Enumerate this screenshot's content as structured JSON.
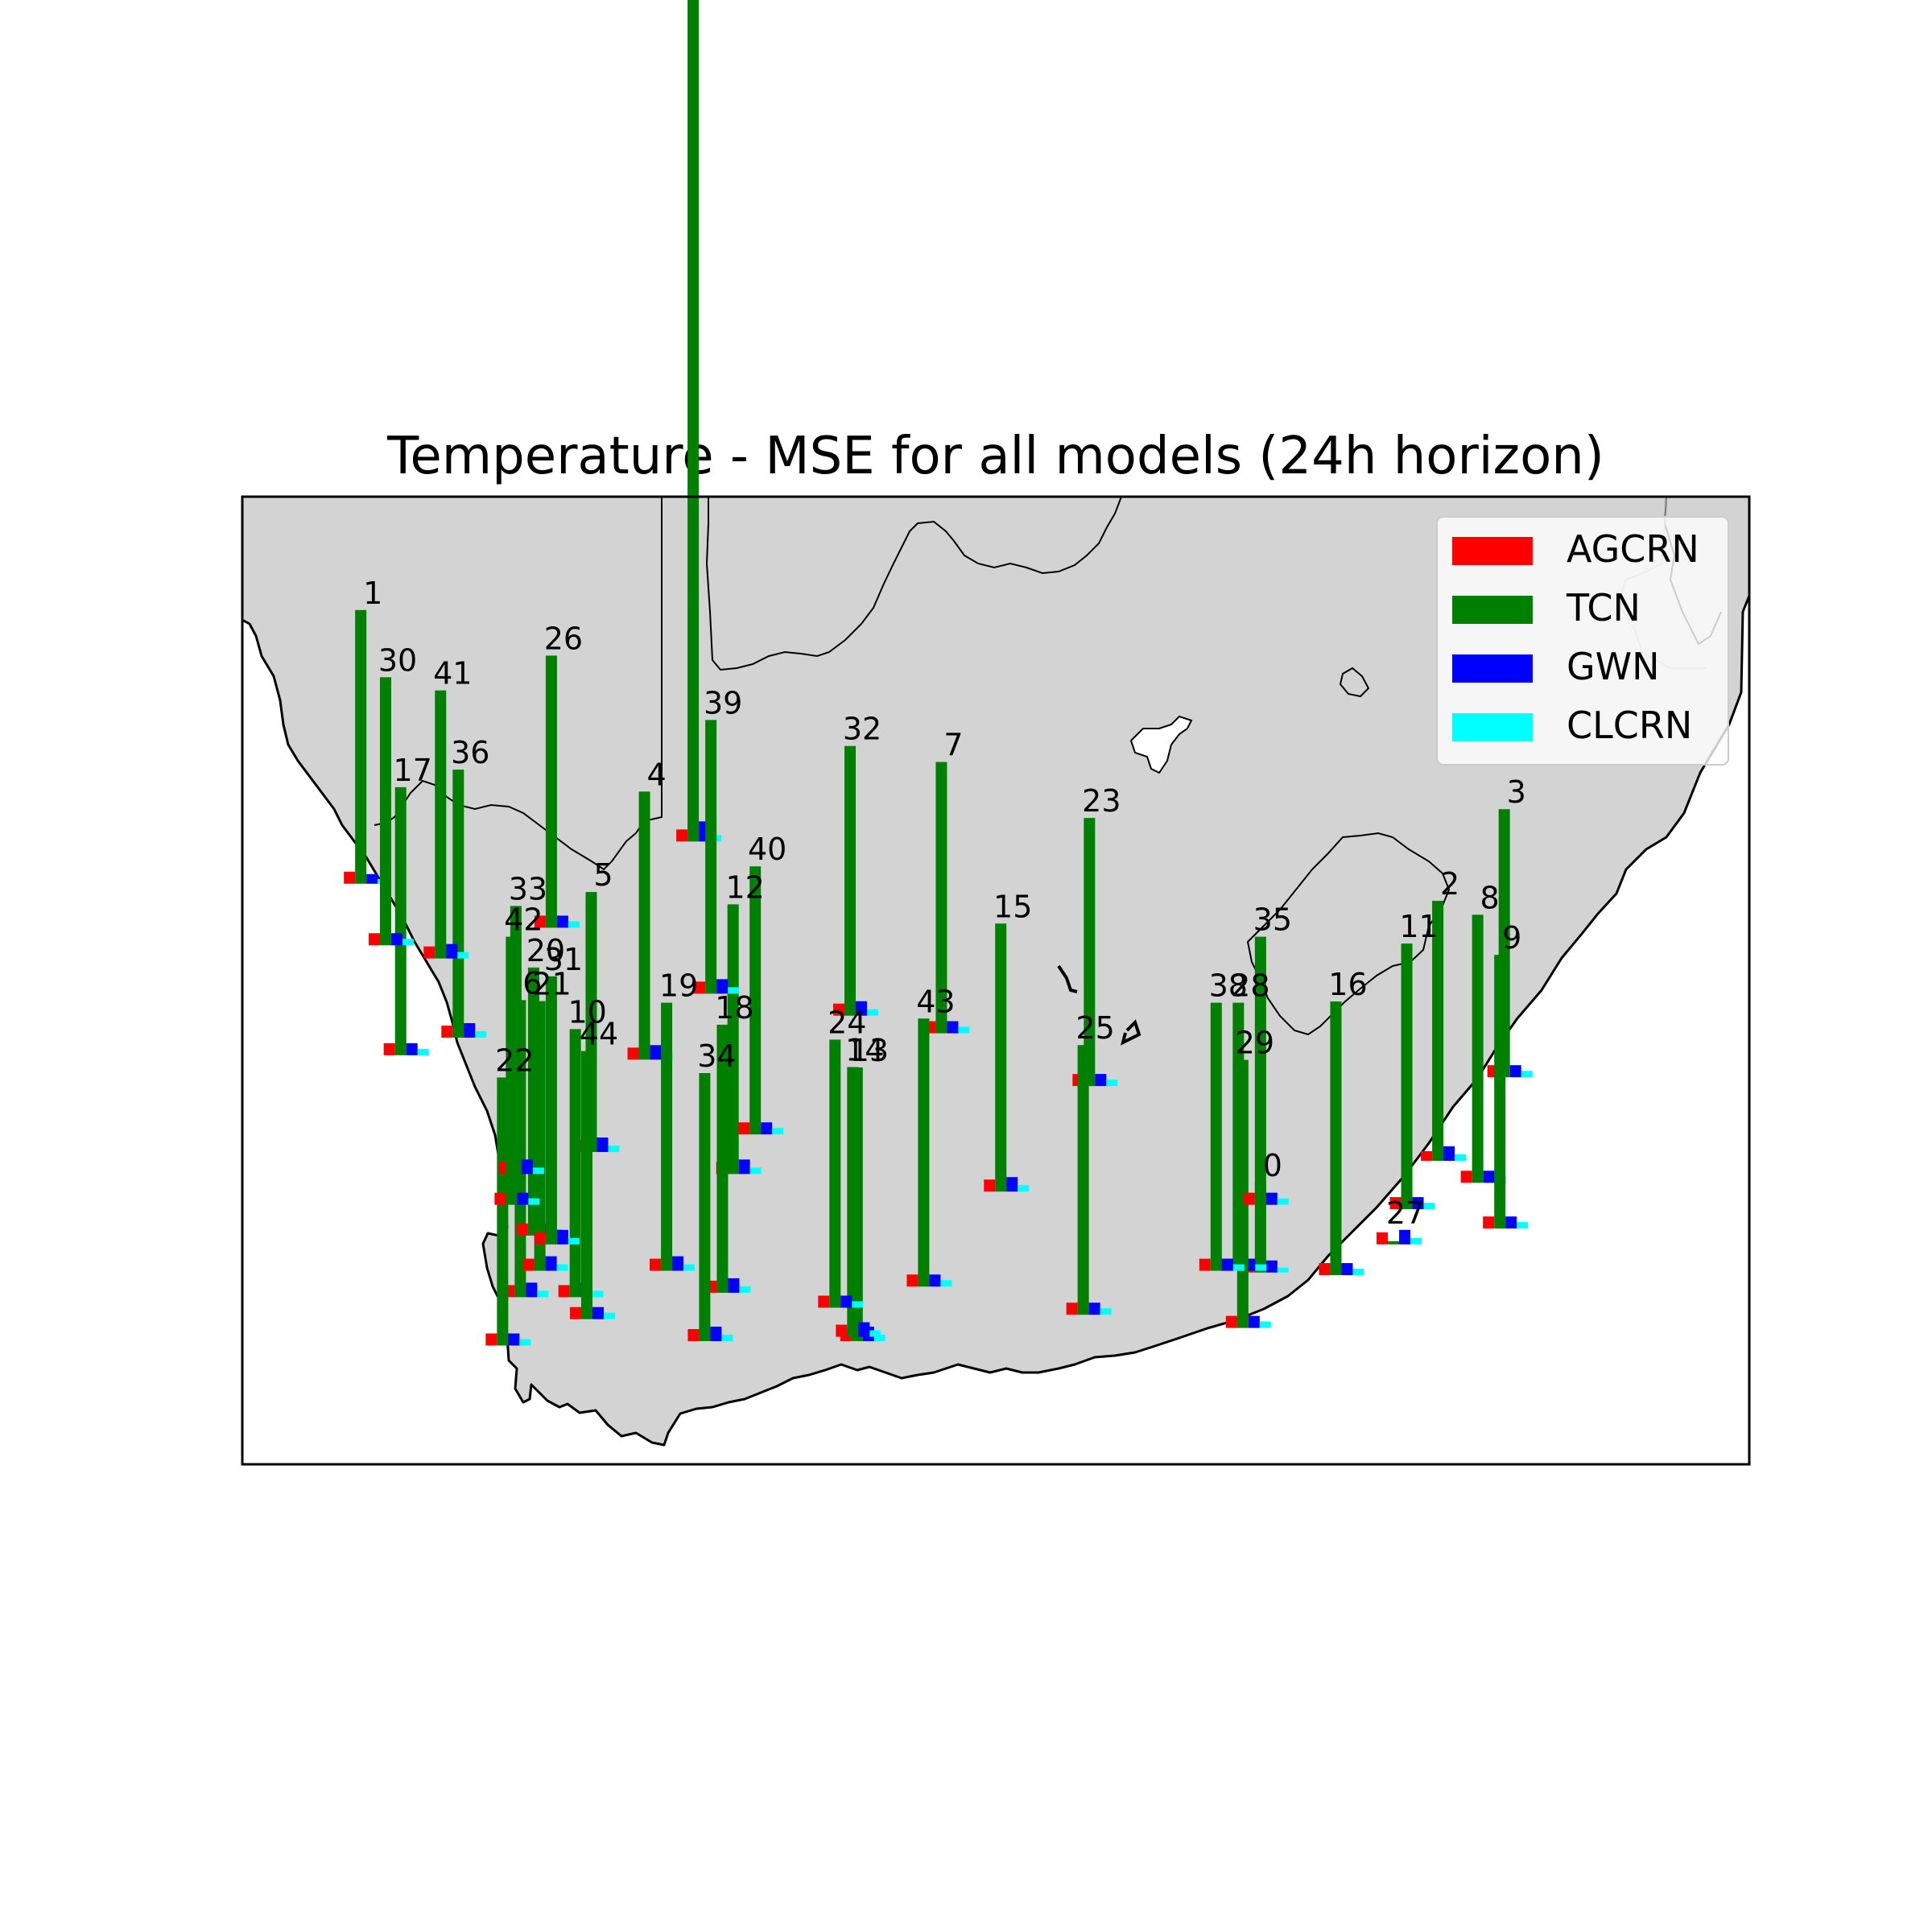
{
  "chart_data": {
    "type": "bar",
    "title": "Temperature - MSE for all models (24h horizon)",
    "xlabel": "",
    "ylabel": "",
    "grid": false,
    "legend_position": "top-right",
    "legend": [
      {
        "name": "AGCRN",
        "color": "#ff0000"
      },
      {
        "name": "TCN",
        "color": "#008000"
      },
      {
        "name": "GWN",
        "color": "#0000ff"
      },
      {
        "name": "CLCRN",
        "color": "#00ffff"
      }
    ],
    "map_extent": {
      "lon": [
        16,
        33
      ],
      "lat": [
        -35.5,
        -24.5
      ]
    },
    "stations": [
      {
        "id": "0",
        "lon": 27.55,
        "lat": -33.32,
        "AGCRN": 1.5,
        "TCN": 11.2,
        "GWN": 1.5,
        "CLCRN": 0.6
      },
      {
        "id": "1",
        "lon": 17.4,
        "lat": -28.9,
        "AGCRN": 1.5,
        "TCN": 34.0,
        "GWN": 1.2,
        "CLCRN": 0.6
      },
      {
        "id": "2",
        "lon": 29.55,
        "lat": -32.05,
        "AGCRN": 1.2,
        "TCN": 32.3,
        "GWN": 1.8,
        "CLCRN": 0.8
      },
      {
        "id": "3",
        "lon": 30.3,
        "lat": -31.1,
        "AGCRN": 1.5,
        "TCN": 33.3,
        "GWN": 1.5,
        "CLCRN": 0.8
      },
      {
        "id": "4",
        "lon": 20.6,
        "lat": -30.9,
        "AGCRN": 1.5,
        "TCN": 33.3,
        "GWN": 1.8,
        "CLCRN": 0.8
      },
      {
        "id": "5",
        "lon": 20.0,
        "lat": -31.95,
        "AGCRN": 1.5,
        "TCN": 32.3,
        "GWN": 1.8,
        "CLCRN": 0.8
      },
      {
        "id": "6",
        "lon": 19.2,
        "lat": -33.6,
        "AGCRN": 1.5,
        "TCN": 36.9,
        "GWN": 1.8,
        "CLCRN": 0.8
      },
      {
        "id": "7",
        "lon": 23.95,
        "lat": -30.6,
        "AGCRN": 1.5,
        "TCN": 33.7,
        "GWN": 1.5,
        "CLCRN": 0.8
      },
      {
        "id": "8",
        "lon": 30.0,
        "lat": -32.3,
        "AGCRN": 1.5,
        "TCN": 33.3,
        "GWN": 1.5,
        "CLCRN": 0.8
      },
      {
        "id": "9",
        "lon": 30.25,
        "lat": -32.82,
        "AGCRN": 1.5,
        "TCN": 34.0,
        "GWN": 1.5,
        "CLCRN": 0.8
      },
      {
        "id": "10",
        "lon": 19.82,
        "lat": -33.6,
        "AGCRN": 1.5,
        "TCN": 33.3,
        "GWN": 1.8,
        "CLCRN": 0.8
      },
      {
        "id": "11",
        "lon": 29.2,
        "lat": -32.6,
        "AGCRN": 1.5,
        "TCN": 33.0,
        "GWN": 1.5,
        "CLCRN": 0.8
      },
      {
        "id": "12",
        "lon": 21.6,
        "lat": -32.2,
        "AGCRN": 1.5,
        "TCN": 33.5,
        "GWN": 1.8,
        "CLCRN": 0.8
      },
      {
        "id": "13",
        "lon": 23.0,
        "lat": -34.1,
        "AGCRN": 1.5,
        "TCN": 34.0,
        "GWN": 1.8,
        "CLCRN": 0.8
      },
      {
        "id": "14",
        "lon": 22.95,
        "lat": -34.05,
        "AGCRN": 1.5,
        "TCN": 33.5,
        "GWN": 1.8,
        "CLCRN": 0.8
      },
      {
        "id": "15",
        "lon": 24.62,
        "lat": -32.4,
        "AGCRN": 1.5,
        "TCN": 33.3,
        "GWN": 1.8,
        "CLCRN": 0.8
      },
      {
        "id": "16",
        "lon": 28.4,
        "lat": -33.35,
        "AGCRN": 1.5,
        "TCN": 34.0,
        "GWN": 1.5,
        "CLCRN": 0.8
      },
      {
        "id": "17",
        "lon": 17.85,
        "lat": -30.85,
        "AGCRN": 1.5,
        "TCN": 33.3,
        "GWN": 1.5,
        "CLCRN": 0.8
      },
      {
        "id": "18",
        "lon": 21.48,
        "lat": -33.55,
        "AGCRN": 1.5,
        "TCN": 33.3,
        "GWN": 1.8,
        "CLCRN": 0.8
      },
      {
        "id": "19",
        "lon": 20.85,
        "lat": -33.3,
        "AGCRN": 1.5,
        "TCN": 33.3,
        "GWN": 1.8,
        "CLCRN": 0.8
      },
      {
        "id": "20",
        "lon": 19.35,
        "lat": -32.9,
        "AGCRN": 1.5,
        "TCN": 33.3,
        "GWN": 1.5,
        "CLCRN": 0.8
      },
      {
        "id": "21",
        "lon": 19.42,
        "lat": -33.3,
        "AGCRN": 1.5,
        "TCN": 33.5,
        "GWN": 1.8,
        "CLCRN": 0.8
      },
      {
        "id": "22",
        "lon": 19.0,
        "lat": -34.15,
        "AGCRN": 1.5,
        "TCN": 33.3,
        "GWN": 1.5,
        "CLCRN": 0.8
      },
      {
        "id": "23",
        "lon": 25.62,
        "lat": -31.2,
        "AGCRN": 1.5,
        "TCN": 33.3,
        "GWN": 1.5,
        "CLCRN": 0.8
      },
      {
        "id": "24",
        "lon": 22.75,
        "lat": -33.72,
        "AGCRN": 1.5,
        "TCN": 33.3,
        "GWN": 1.5,
        "CLCRN": 0.8
      },
      {
        "id": "25",
        "lon": 25.55,
        "lat": -33.8,
        "AGCRN": 1.5,
        "TCN": 33.5,
        "GWN": 1.5,
        "CLCRN": 0.8
      },
      {
        "id": "26",
        "lon": 19.55,
        "lat": -29.4,
        "AGCRN": 1.5,
        "TCN": 33.8,
        "GWN": 1.5,
        "CLCRN": 0.8
      },
      {
        "id": "27",
        "lon": 29.05,
        "lat": -33.0,
        "AGCRN": 1.5,
        "TCN": 0.4,
        "GWN": 1.8,
        "CLCRN": 0.8
      },
      {
        "id": "28",
        "lon": 27.3,
        "lat": -33.3,
        "AGCRN": 1.5,
        "TCN": 33.3,
        "GWN": 1.5,
        "CLCRN": 0.8
      },
      {
        "id": "29",
        "lon": 27.35,
        "lat": -33.95,
        "AGCRN": 1.5,
        "TCN": 33.3,
        "GWN": 1.5,
        "CLCRN": 0.8
      },
      {
        "id": "30",
        "lon": 17.68,
        "lat": -29.6,
        "AGCRN": 1.5,
        "TCN": 33.3,
        "GWN": 1.5,
        "CLCRN": 0.8
      },
      {
        "id": "31",
        "lon": 19.55,
        "lat": -33.0,
        "AGCRN": 1.5,
        "TCN": 33.3,
        "GWN": 1.8,
        "CLCRN": 0.8
      },
      {
        "id": "32",
        "lon": 22.92,
        "lat": -30.4,
        "AGCRN": 1.5,
        "TCN": 33.5,
        "GWN": 1.8,
        "CLCRN": 0.8
      },
      {
        "id": "33",
        "lon": 19.15,
        "lat": -32.2,
        "AGCRN": 1.5,
        "TCN": 33.3,
        "GWN": 1.8,
        "CLCRN": 0.8
      },
      {
        "id": "34",
        "lon": 21.28,
        "lat": -34.1,
        "AGCRN": 1.5,
        "TCN": 33.3,
        "GWN": 1.8,
        "CLCRN": 0.8
      },
      {
        "id": "35",
        "lon": 27.55,
        "lat": -32.55,
        "AGCRN": 1.5,
        "TCN": 33.3,
        "GWN": 1.5,
        "CLCRN": 0.8
      },
      {
        "id": "36",
        "lon": 18.5,
        "lat": -30.65,
        "AGCRN": 1.5,
        "TCN": 33.3,
        "GWN": 1.8,
        "CLCRN": 0.8
      },
      {
        "id": "37",
        "lon": 21.15,
        "lat": -28.42,
        "AGCRN": 1.5,
        "TCN": 110.0,
        "GWN": 2.5,
        "CLCRN": 0.8
      },
      {
        "id": "38",
        "lon": 27.05,
        "lat": -33.3,
        "AGCRN": 1.5,
        "TCN": 33.3,
        "GWN": 1.5,
        "CLCRN": 0.8
      },
      {
        "id": "39",
        "lon": 21.35,
        "lat": -30.15,
        "AGCRN": 1.5,
        "TCN": 34.0,
        "GWN": 1.8,
        "CLCRN": 0.8
      },
      {
        "id": "40",
        "lon": 21.85,
        "lat": -31.75,
        "AGCRN": 1.5,
        "TCN": 33.3,
        "GWN": 1.5,
        "CLCRN": 0.8
      },
      {
        "id": "41",
        "lon": 18.3,
        "lat": -29.75,
        "AGCRN": 1.5,
        "TCN": 33.3,
        "GWN": 1.8,
        "CLCRN": 0.8
      },
      {
        "id": "42",
        "lon": 19.1,
        "lat": -32.55,
        "AGCRN": 1.5,
        "TCN": 33.3,
        "GWN": 1.5,
        "CLCRN": 0.8
      },
      {
        "id": "43",
        "lon": 23.75,
        "lat": -33.48,
        "AGCRN": 1.5,
        "TCN": 33.3,
        "GWN": 1.5,
        "CLCRN": 0.8
      },
      {
        "id": "44",
        "lon": 19.95,
        "lat": -33.85,
        "AGCRN": 1.5,
        "TCN": 33.3,
        "GWN": 1.5,
        "CLCRN": 0.8
      }
    ]
  },
  "map": {
    "land_color": "#d3d3d3",
    "border_color": "#000000"
  }
}
